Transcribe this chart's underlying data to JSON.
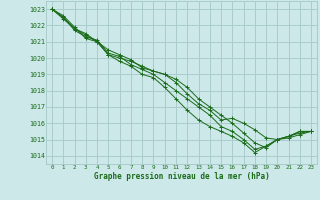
{
  "bg_color": "#cce8e8",
  "grid_color": "#aacccc",
  "line_color": "#1a6b1a",
  "xlabel": "Graphe pression niveau de la mer (hPa)",
  "ylim": [
    1013.5,
    1023.5
  ],
  "xlim": [
    -0.5,
    23.5
  ],
  "yticks": [
    1014,
    1015,
    1016,
    1017,
    1018,
    1019,
    1020,
    1021,
    1022,
    1023
  ],
  "xticks": [
    0,
    1,
    2,
    3,
    4,
    5,
    6,
    7,
    8,
    9,
    10,
    11,
    12,
    13,
    14,
    15,
    16,
    17,
    18,
    19,
    20,
    21,
    22,
    23
  ],
  "series": [
    [
      1023.0,
      1022.5,
      1021.8,
      1021.4,
      1021.0,
      1020.2,
      1020.0,
      1019.8,
      1019.5,
      1019.2,
      1019.0,
      1018.7,
      1018.2,
      1017.5,
      1017.0,
      1016.5,
      1016.0,
      1015.4,
      1014.8,
      1014.5,
      1015.0,
      1015.2,
      1015.5,
      1015.5
    ],
    [
      1023.0,
      1022.6,
      1021.9,
      1021.2,
      1021.0,
      1020.5,
      1020.2,
      1019.9,
      1019.4,
      1019.2,
      1019.0,
      1018.5,
      1017.8,
      1017.2,
      1016.8,
      1016.2,
      1016.3,
      1016.0,
      1015.6,
      1015.1,
      1015.0,
      1015.2,
      1015.4,
      1015.5
    ],
    [
      1023.0,
      1022.5,
      1021.7,
      1021.3,
      1021.1,
      1020.3,
      1020.1,
      1019.6,
      1019.3,
      1019.0,
      1018.5,
      1018.0,
      1017.5,
      1017.0,
      1016.5,
      1015.8,
      1015.5,
      1015.0,
      1014.4,
      1014.6,
      1015.0,
      1015.2,
      1015.5,
      1015.5
    ],
    [
      1023.0,
      1022.4,
      1021.8,
      1021.5,
      1021.0,
      1020.2,
      1019.8,
      1019.5,
      1019.0,
      1018.8,
      1018.2,
      1017.5,
      1016.8,
      1016.2,
      1015.8,
      1015.5,
      1015.2,
      1014.8,
      1014.2,
      1014.6,
      1015.0,
      1015.1,
      1015.3,
      1015.5
    ]
  ]
}
